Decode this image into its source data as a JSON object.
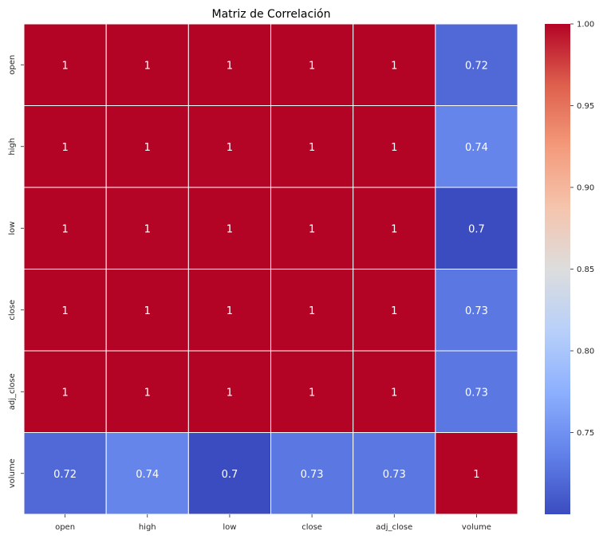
{
  "chart_data": {
    "type": "heatmap",
    "title": "Matriz de Correlación",
    "x_categories": [
      "open",
      "high",
      "low",
      "close",
      "adj_close",
      "volume"
    ],
    "y_categories": [
      "open",
      "high",
      "low",
      "close",
      "adj_close",
      "volume"
    ],
    "values": [
      [
        1.0,
        1.0,
        1.0,
        1.0,
        1.0,
        0.72
      ],
      [
        1.0,
        1.0,
        0.9995,
        1.0,
        1.0,
        0.74
      ],
      [
        1.0,
        0.9995,
        1.0,
        1.0,
        1.0,
        0.7
      ],
      [
        1.0,
        1.0,
        1.0,
        1.0,
        1.0,
        0.73
      ],
      [
        1.0,
        1.0,
        1.0,
        1.0,
        1.0,
        0.73
      ],
      [
        0.72,
        0.74,
        0.7,
        0.73,
        0.73,
        1.0
      ]
    ],
    "annotations": [
      [
        "1",
        "1",
        "1",
        "1",
        "1",
        "0.72"
      ],
      [
        "1",
        "1",
        "1",
        "1",
        "1",
        "0.74"
      ],
      [
        "1",
        "1",
        "1",
        "1",
        "1",
        "0.7"
      ],
      [
        "1",
        "1",
        "1",
        "1",
        "1",
        "0.73"
      ],
      [
        "1",
        "1",
        "1",
        "1",
        "1",
        "0.73"
      ],
      [
        "0.72",
        "0.74",
        "0.7",
        "0.73",
        "0.73",
        "1"
      ]
    ],
    "colormap": "coolwarm",
    "colorbar": {
      "range": [
        0.7,
        1.0
      ],
      "ticks": [
        0.75,
        0.8,
        0.85,
        0.9,
        0.95,
        1.0
      ],
      "tick_labels": [
        "0.75",
        "0.80",
        "0.85",
        "0.90",
        "0.95",
        "1.00"
      ],
      "location": "right"
    },
    "cell_border_color": "#ffffff",
    "annotation_color_dark_bg": "#ffffff",
    "annotation_color_light_bg": "#262626"
  }
}
